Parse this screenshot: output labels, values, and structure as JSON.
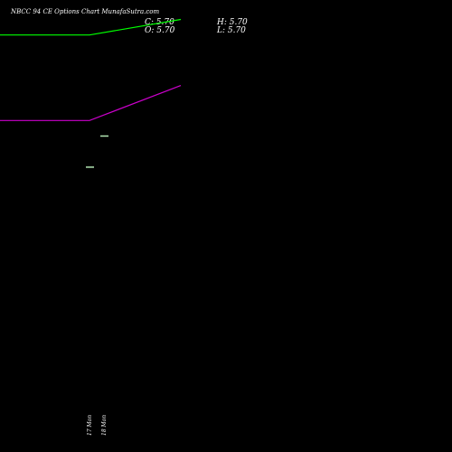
{
  "title": "NBCC 94  CE Options  Chart MunafaSutra.com",
  "ohlc": {
    "close": "C: 5.70",
    "high": "H: 5.70",
    "open": "O: 5.70",
    "low": "L: 5.70"
  },
  "chart_data": {
    "type": "line",
    "categories": [
      "17 Mon",
      "18 Mon",
      ""
    ],
    "series": [
      {
        "color": "#00ff00",
        "values": [
          null,
          0.91,
          0.95
        ]
      },
      {
        "color": "#cc00cc",
        "values": [
          null,
          0.69,
          0.78
        ]
      }
    ],
    "candles": [
      {
        "x": "17 Mon",
        "open": 0.57,
        "close": 0.57,
        "color": "#b3e6b3"
      },
      {
        "x": "18 Mon",
        "open": 0.65,
        "close": 0.65,
        "color": "#b3e6b3"
      }
    ],
    "extend_left": true,
    "ylim": [
      0,
      1
    ],
    "grid": false,
    "xtick_labels": [
      "17 Mon",
      "18 Mon"
    ],
    "colors": {
      "background": "#000000",
      "text": "#ffffff"
    }
  }
}
